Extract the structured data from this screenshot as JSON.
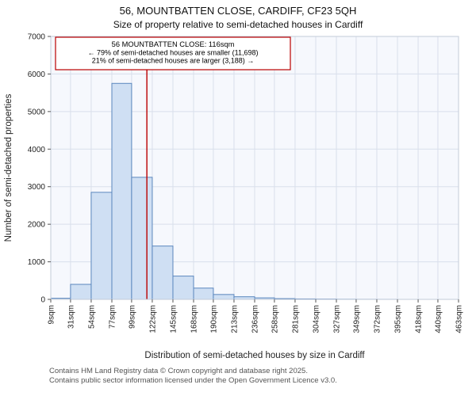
{
  "annotation": {
    "line1": "56 MOUNTBATTEN CLOSE: 116sqm",
    "line2": "← 79% of semi-detached houses are smaller (11,698)",
    "line3": "21% of semi-detached houses are larger (3,188) →"
  },
  "footer": {
    "line1": "Contains HM Land Registry data © Crown copyright and database right 2025.",
    "line2": "Contains public sector information licensed under the Open Government Licence v3.0."
  },
  "chart_data": {
    "type": "bar",
    "title": "56, MOUNTBATTEN CLOSE, CARDIFF, CF23 5QH",
    "subtitle": "Size of property relative to semi-detached houses in Cardiff",
    "xlabel": "Distribution of semi-detached houses by size in Cardiff",
    "ylabel": "Number of semi-detached properties",
    "x_tick_labels": [
      "9sqm",
      "31sqm",
      "54sqm",
      "77sqm",
      "99sqm",
      "122sqm",
      "145sqm",
      "168sqm",
      "190sqm",
      "213sqm",
      "236sqm",
      "258sqm",
      "281sqm",
      "304sqm",
      "327sqm",
      "349sqm",
      "372sqm",
      "395sqm",
      "418sqm",
      "440sqm",
      "463sqm"
    ],
    "bin_edges": [
      9,
      31,
      54,
      77,
      99,
      122,
      145,
      168,
      190,
      213,
      236,
      258,
      281,
      304,
      327,
      349,
      372,
      395,
      418,
      440,
      463
    ],
    "values": [
      30,
      400,
      2850,
      5750,
      3250,
      1420,
      620,
      300,
      130,
      70,
      40,
      20,
      12,
      8,
      4,
      2,
      1,
      0,
      0,
      0
    ],
    "ylim": [
      0,
      7000
    ],
    "y_ticks": [
      0,
      1000,
      2000,
      3000,
      4000,
      5000,
      6000,
      7000
    ],
    "grid": true,
    "legend": "none",
    "marker_value": 116,
    "marker_color": "#bb0000",
    "bar_fill": "#cfdff3",
    "bar_stroke": "#5b87be",
    "plot_bg": "#f6f8fd",
    "grid_color": "#d9dfeb",
    "border_color": "#c3cbd8"
  }
}
